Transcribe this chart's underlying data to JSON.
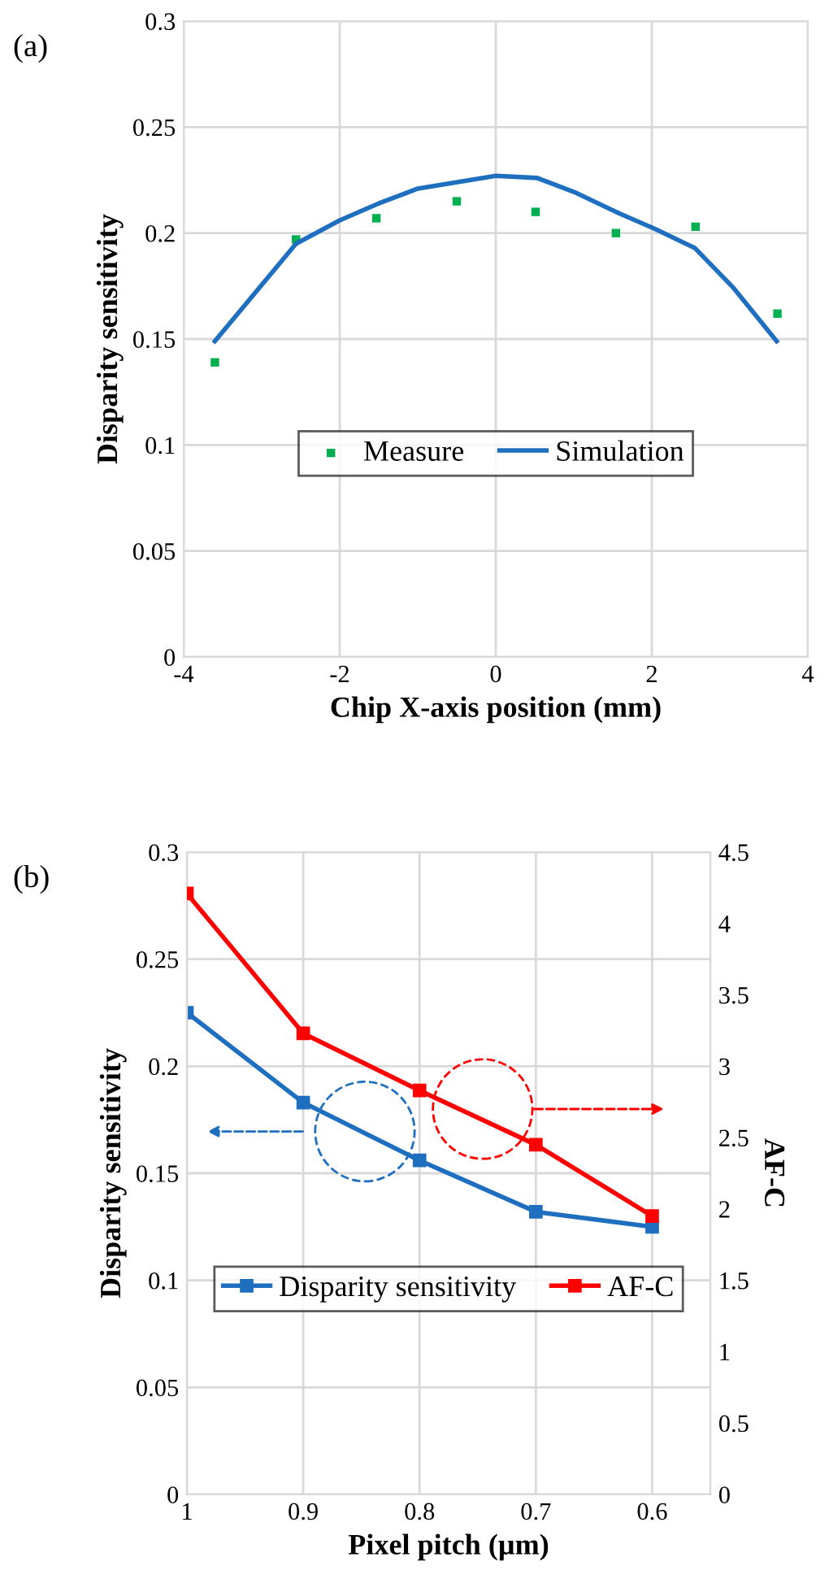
{
  "chart_data": [
    {
      "type": "line",
      "annotations": [
        "(a)"
      ],
      "xlabel": "Chip X-axis position (mm)",
      "ylabel": "Disparity sensitivity",
      "xlim": [
        -4,
        4
      ],
      "ylim": [
        0,
        0.3
      ],
      "xticks": [
        -4,
        -2,
        0,
        2,
        4
      ],
      "yticks": [
        0,
        0.05,
        0.1,
        0.15,
        0.2,
        0.25,
        0.3
      ],
      "grid": true,
      "legend": "center",
      "series": [
        {
          "name": "Measure",
          "type": "scatter",
          "marker": "square",
          "color": "#00b050",
          "x": [
            -3.6,
            -2.56,
            -1.53,
            -0.5,
            0.51,
            1.54,
            2.56,
            3.61
          ],
          "values": [
            0.139,
            0.197,
            0.207,
            0.215,
            0.21,
            0.2,
            0.203,
            0.162
          ]
        },
        {
          "name": "Simulation",
          "type": "line",
          "line_style": "solid",
          "color": "#1f6fc0",
          "x": [
            -3.6,
            -2.56,
            -2.0,
            -1.5,
            -1.0,
            0.0,
            0.53,
            1.03,
            1.54,
            2.04,
            2.55,
            3.05,
            3.6
          ],
          "values": [
            0.149,
            0.195,
            0.206,
            0.214,
            0.221,
            0.227,
            0.226,
            0.219,
            0.21,
            0.202,
            0.193,
            0.174,
            0.149
          ]
        }
      ]
    },
    {
      "type": "line",
      "annotations": [
        "(b)"
      ],
      "xlabel": "Pixel pitch (µm)",
      "ylabel": "Disparity sensitivity",
      "y2label": "AF-C",
      "xlim": [
        1,
        0.55
      ],
      "xticks": [
        1,
        0.9,
        0.8,
        0.7,
        0.6
      ],
      "ylim": [
        0,
        0.3
      ],
      "yticks": [
        0,
        0.05,
        0.1,
        0.15,
        0.2,
        0.25,
        0.3
      ],
      "y2lim": [
        0,
        4.5
      ],
      "y2ticks": [
        0,
        0.5,
        1,
        1.5,
        2,
        2.5,
        3,
        3.5,
        4,
        4.5
      ],
      "grid": true,
      "legend": "center",
      "marker": "square",
      "line_style": "solid",
      "series": [
        {
          "name": "Disparity sensitivity",
          "color": "#1f6fc0",
          "x": [
            1,
            0.9,
            0.8,
            0.7,
            0.6
          ],
          "values": [
            0.225,
            0.183,
            0.156,
            0.132,
            0.125
          ]
        },
        {
          "name": "AF-C",
          "axis": "y2",
          "color": "#ff0000",
          "x": [
            1,
            0.9,
            0.8,
            0.7,
            0.6
          ],
          "values": [
            4.21,
            3.23,
            2.83,
            2.45,
            1.95
          ]
        }
      ]
    }
  ]
}
